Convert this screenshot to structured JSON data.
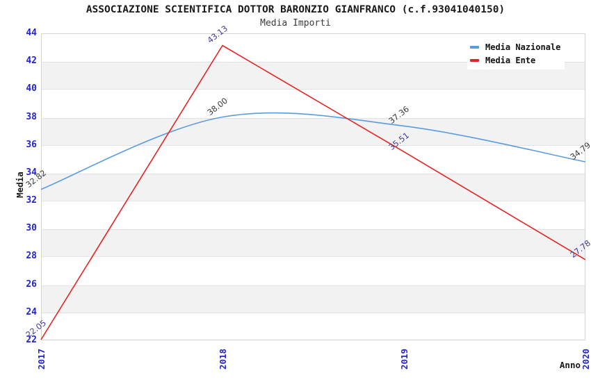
{
  "title": "ASSOCIAZIONE SCIENTIFICA DOTTOR BARONZIO GIANFRANCO (c.f.93041040150)",
  "subtitle": "Media Importi",
  "colors": {
    "background": "#ffffff",
    "title": "#1a1a1a",
    "subtitle": "#3a3a3a",
    "tick_label": "#2323cc",
    "band_gray": "#f2f2f2",
    "plot_border": "#d4d4d4",
    "nazionale_line": "#5a9be0",
    "ente_line": "#e82222",
    "nazionale_point_label": "#3a3a3a",
    "ente_point_label": "#3d3d99"
  },
  "chart_data": {
    "type": "line",
    "title": "ASSOCIAZIONE SCIENTIFICA DOTTOR BARONZIO GIANFRANCO (c.f.93041040150)",
    "subtitle": "Media Importi",
    "x": [
      "2017",
      "2018",
      "2019",
      "2020"
    ],
    "xlabel": "Anno",
    "ylabel": "Media",
    "ylim": [
      22,
      44
    ],
    "ytick_step": 2,
    "grid": "horizontal-alternating-bands",
    "legend_position": "top-right",
    "series": [
      {
        "name": "Media Nazionale",
        "color": "#5a9be0",
        "label_color": "#3a3a3a",
        "smooth": true,
        "values": [
          32.82,
          38.0,
          37.36,
          34.79
        ],
        "point_labels": [
          "32.82",
          "38.00",
          "37.36",
          "34.79"
        ]
      },
      {
        "name": "Media Ente",
        "color": "#e82222",
        "label_color": "#3d3d99",
        "smooth": false,
        "values": [
          22.05,
          43.13,
          35.51,
          27.78
        ],
        "point_labels": [
          "22.05",
          "43.13",
          "35.51",
          "27.78"
        ]
      }
    ]
  }
}
